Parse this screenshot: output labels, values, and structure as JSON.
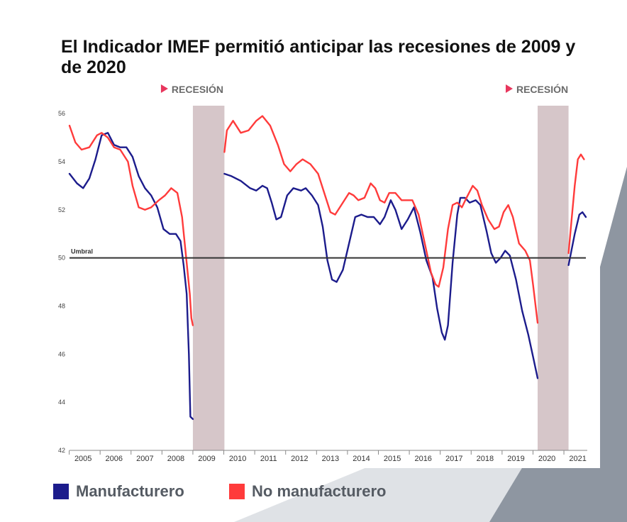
{
  "title": "El Indicador IMEF permitió anticipar las recesiones de 2009 y de 2020",
  "colors": {
    "manufacturero": "#1c1c8c",
    "no_manufacturero": "#ff3b3b",
    "recession_band": "#d6c6c9",
    "marker": "#e8365d",
    "threshold": "#333333",
    "background_dark": "#8e96a1",
    "background_light": "#dfe2e6"
  },
  "recession_label": "RECESIÓN",
  "legend": [
    {
      "label": "Manufacturero",
      "color": "#1c1c8c"
    },
    {
      "label": "No manufacturero",
      "color": "#ff3b3b"
    }
  ],
  "chart_data": {
    "type": "line",
    "xlabel": "",
    "ylabel": "",
    "ylim": [
      42,
      56.3
    ],
    "yticks": [
      42,
      44,
      46,
      48,
      50,
      52,
      54,
      56
    ],
    "x_tick_labels": [
      "2005",
      "2006",
      "2007",
      "2008",
      "2009",
      "2010",
      "2011",
      "2012",
      "2013",
      "2014",
      "2015",
      "2016",
      "2017",
      "2018",
      "2019",
      "2020",
      "2021"
    ],
    "x_tick_positions": [
      2005.4,
      2006.4,
      2007.4,
      2008.4,
      2009.4,
      2010.4,
      2011.4,
      2012.4,
      2013.4,
      2014.4,
      2015.4,
      2016.4,
      2017.4,
      2018.4,
      2019.4,
      2020.4,
      2021.4
    ],
    "xlim": [
      2004.96,
      2021.66
    ],
    "threshold": {
      "value": 50,
      "label": "Umbral"
    },
    "recessions": [
      {
        "label": "RECESIÓN",
        "from": 2008.95,
        "to": 2009.97
      },
      {
        "label": "RECESIÓN",
        "from": 2020.1,
        "to": 2021.1
      }
    ],
    "series": [
      {
        "name": "Manufacturero",
        "color": "#1c1c8c",
        "points": [
          [
            2004.96,
            53.5
          ],
          [
            2005.2,
            53.1
          ],
          [
            2005.4,
            52.9
          ],
          [
            2005.6,
            53.3
          ],
          [
            2005.8,
            54.1
          ],
          [
            2006.0,
            55.1
          ],
          [
            2006.2,
            55.2
          ],
          [
            2006.4,
            54.7
          ],
          [
            2006.6,
            54.6
          ],
          [
            2006.8,
            54.6
          ],
          [
            2007.0,
            54.2
          ],
          [
            2007.2,
            53.4
          ],
          [
            2007.4,
            52.9
          ],
          [
            2007.6,
            52.6
          ],
          [
            2007.8,
            52.1
          ],
          [
            2008.0,
            51.2
          ],
          [
            2008.2,
            51.0
          ],
          [
            2008.4,
            51.0
          ],
          [
            2008.55,
            50.7
          ],
          [
            2008.65,
            49.7
          ],
          [
            2008.75,
            48.5
          ],
          [
            2008.82,
            46.0
          ],
          [
            2008.87,
            43.4
          ],
          [
            2008.95,
            43.3
          ],
          [
            2009.97,
            53.5
          ],
          [
            2010.2,
            53.4
          ],
          [
            2010.5,
            53.2
          ],
          [
            2010.8,
            52.9
          ],
          [
            2011.0,
            52.8
          ],
          [
            2011.2,
            53.0
          ],
          [
            2011.35,
            52.9
          ],
          [
            2011.5,
            52.3
          ],
          [
            2011.65,
            51.6
          ],
          [
            2011.8,
            51.7
          ],
          [
            2012.0,
            52.6
          ],
          [
            2012.2,
            52.9
          ],
          [
            2012.45,
            52.8
          ],
          [
            2012.6,
            52.9
          ],
          [
            2012.8,
            52.6
          ],
          [
            2013.0,
            52.2
          ],
          [
            2013.15,
            51.3
          ],
          [
            2013.3,
            49.9
          ],
          [
            2013.45,
            49.1
          ],
          [
            2013.6,
            49.0
          ],
          [
            2013.8,
            49.5
          ],
          [
            2014.0,
            50.6
          ],
          [
            2014.2,
            51.7
          ],
          [
            2014.4,
            51.8
          ],
          [
            2014.6,
            51.7
          ],
          [
            2014.8,
            51.7
          ],
          [
            2015.0,
            51.4
          ],
          [
            2015.15,
            51.7
          ],
          [
            2015.35,
            52.4
          ],
          [
            2015.5,
            52.0
          ],
          [
            2015.7,
            51.2
          ],
          [
            2015.9,
            51.6
          ],
          [
            2016.1,
            52.1
          ],
          [
            2016.3,
            51.1
          ],
          [
            2016.5,
            49.9
          ],
          [
            2016.7,
            49.2
          ],
          [
            2016.85,
            47.9
          ],
          [
            2017.0,
            46.9
          ],
          [
            2017.1,
            46.6
          ],
          [
            2017.2,
            47.2
          ],
          [
            2017.35,
            49.8
          ],
          [
            2017.5,
            51.8
          ],
          [
            2017.6,
            52.5
          ],
          [
            2017.75,
            52.5
          ],
          [
            2017.9,
            52.3
          ],
          [
            2018.1,
            52.4
          ],
          [
            2018.25,
            52.2
          ],
          [
            2018.45,
            51.1
          ],
          [
            2018.6,
            50.2
          ],
          [
            2018.75,
            49.8
          ],
          [
            2018.9,
            50.0
          ],
          [
            2019.05,
            50.3
          ],
          [
            2019.2,
            50.1
          ],
          [
            2019.4,
            49.1
          ],
          [
            2019.6,
            47.8
          ],
          [
            2019.8,
            46.8
          ],
          [
            2019.95,
            45.9
          ],
          [
            2020.1,
            45.0
          ],
          [
            2021.1,
            49.7
          ],
          [
            2021.3,
            51.0
          ],
          [
            2021.45,
            51.8
          ],
          [
            2021.55,
            51.9
          ],
          [
            2021.66,
            51.7
          ]
        ]
      },
      {
        "name": "No manufacturero",
        "color": "#ff3b3b",
        "points": [
          [
            2004.96,
            55.5
          ],
          [
            2005.15,
            54.8
          ],
          [
            2005.35,
            54.5
          ],
          [
            2005.6,
            54.6
          ],
          [
            2005.85,
            55.1
          ],
          [
            2006.0,
            55.2
          ],
          [
            2006.2,
            55.0
          ],
          [
            2006.4,
            54.6
          ],
          [
            2006.6,
            54.5
          ],
          [
            2006.85,
            54.0
          ],
          [
            2007.0,
            53.0
          ],
          [
            2007.2,
            52.1
          ],
          [
            2007.4,
            52.0
          ],
          [
            2007.6,
            52.1
          ],
          [
            2007.85,
            52.4
          ],
          [
            2008.05,
            52.6
          ],
          [
            2008.25,
            52.9
          ],
          [
            2008.45,
            52.7
          ],
          [
            2008.6,
            51.7
          ],
          [
            2008.75,
            49.8
          ],
          [
            2008.85,
            48.5
          ],
          [
            2008.9,
            47.5
          ],
          [
            2008.95,
            47.2
          ],
          [
            2009.97,
            54.4
          ],
          [
            2010.05,
            55.3
          ],
          [
            2010.25,
            55.7
          ],
          [
            2010.5,
            55.2
          ],
          [
            2010.75,
            55.3
          ],
          [
            2011.0,
            55.7
          ],
          [
            2011.2,
            55.9
          ],
          [
            2011.45,
            55.5
          ],
          [
            2011.7,
            54.7
          ],
          [
            2011.9,
            53.9
          ],
          [
            2012.1,
            53.6
          ],
          [
            2012.3,
            53.9
          ],
          [
            2012.5,
            54.1
          ],
          [
            2012.75,
            53.9
          ],
          [
            2013.0,
            53.5
          ],
          [
            2013.2,
            52.7
          ],
          [
            2013.4,
            51.9
          ],
          [
            2013.55,
            51.8
          ],
          [
            2013.75,
            52.2
          ],
          [
            2014.0,
            52.7
          ],
          [
            2014.15,
            52.6
          ],
          [
            2014.3,
            52.4
          ],
          [
            2014.5,
            52.5
          ],
          [
            2014.7,
            53.1
          ],
          [
            2014.85,
            52.9
          ],
          [
            2015.0,
            52.4
          ],
          [
            2015.15,
            52.3
          ],
          [
            2015.3,
            52.7
          ],
          [
            2015.5,
            52.7
          ],
          [
            2015.7,
            52.4
          ],
          [
            2015.9,
            52.4
          ],
          [
            2016.05,
            52.4
          ],
          [
            2016.25,
            51.8
          ],
          [
            2016.45,
            50.6
          ],
          [
            2016.65,
            49.4
          ],
          [
            2016.8,
            48.9
          ],
          [
            2016.9,
            48.8
          ],
          [
            2017.05,
            49.6
          ],
          [
            2017.2,
            51.2
          ],
          [
            2017.35,
            52.2
          ],
          [
            2017.5,
            52.3
          ],
          [
            2017.65,
            52.1
          ],
          [
            2017.8,
            52.5
          ],
          [
            2018.0,
            53.0
          ],
          [
            2018.15,
            52.8
          ],
          [
            2018.3,
            52.2
          ],
          [
            2018.5,
            51.6
          ],
          [
            2018.7,
            51.2
          ],
          [
            2018.85,
            51.3
          ],
          [
            2019.0,
            51.9
          ],
          [
            2019.15,
            52.2
          ],
          [
            2019.3,
            51.7
          ],
          [
            2019.5,
            50.6
          ],
          [
            2019.7,
            50.3
          ],
          [
            2019.85,
            49.9
          ],
          [
            2019.95,
            48.9
          ],
          [
            2020.1,
            47.3
          ],
          [
            2021.1,
            50.2
          ],
          [
            2021.2,
            51.6
          ],
          [
            2021.3,
            53.0
          ],
          [
            2021.4,
            54.1
          ],
          [
            2021.5,
            54.3
          ],
          [
            2021.6,
            54.1
          ]
        ]
      }
    ]
  }
}
